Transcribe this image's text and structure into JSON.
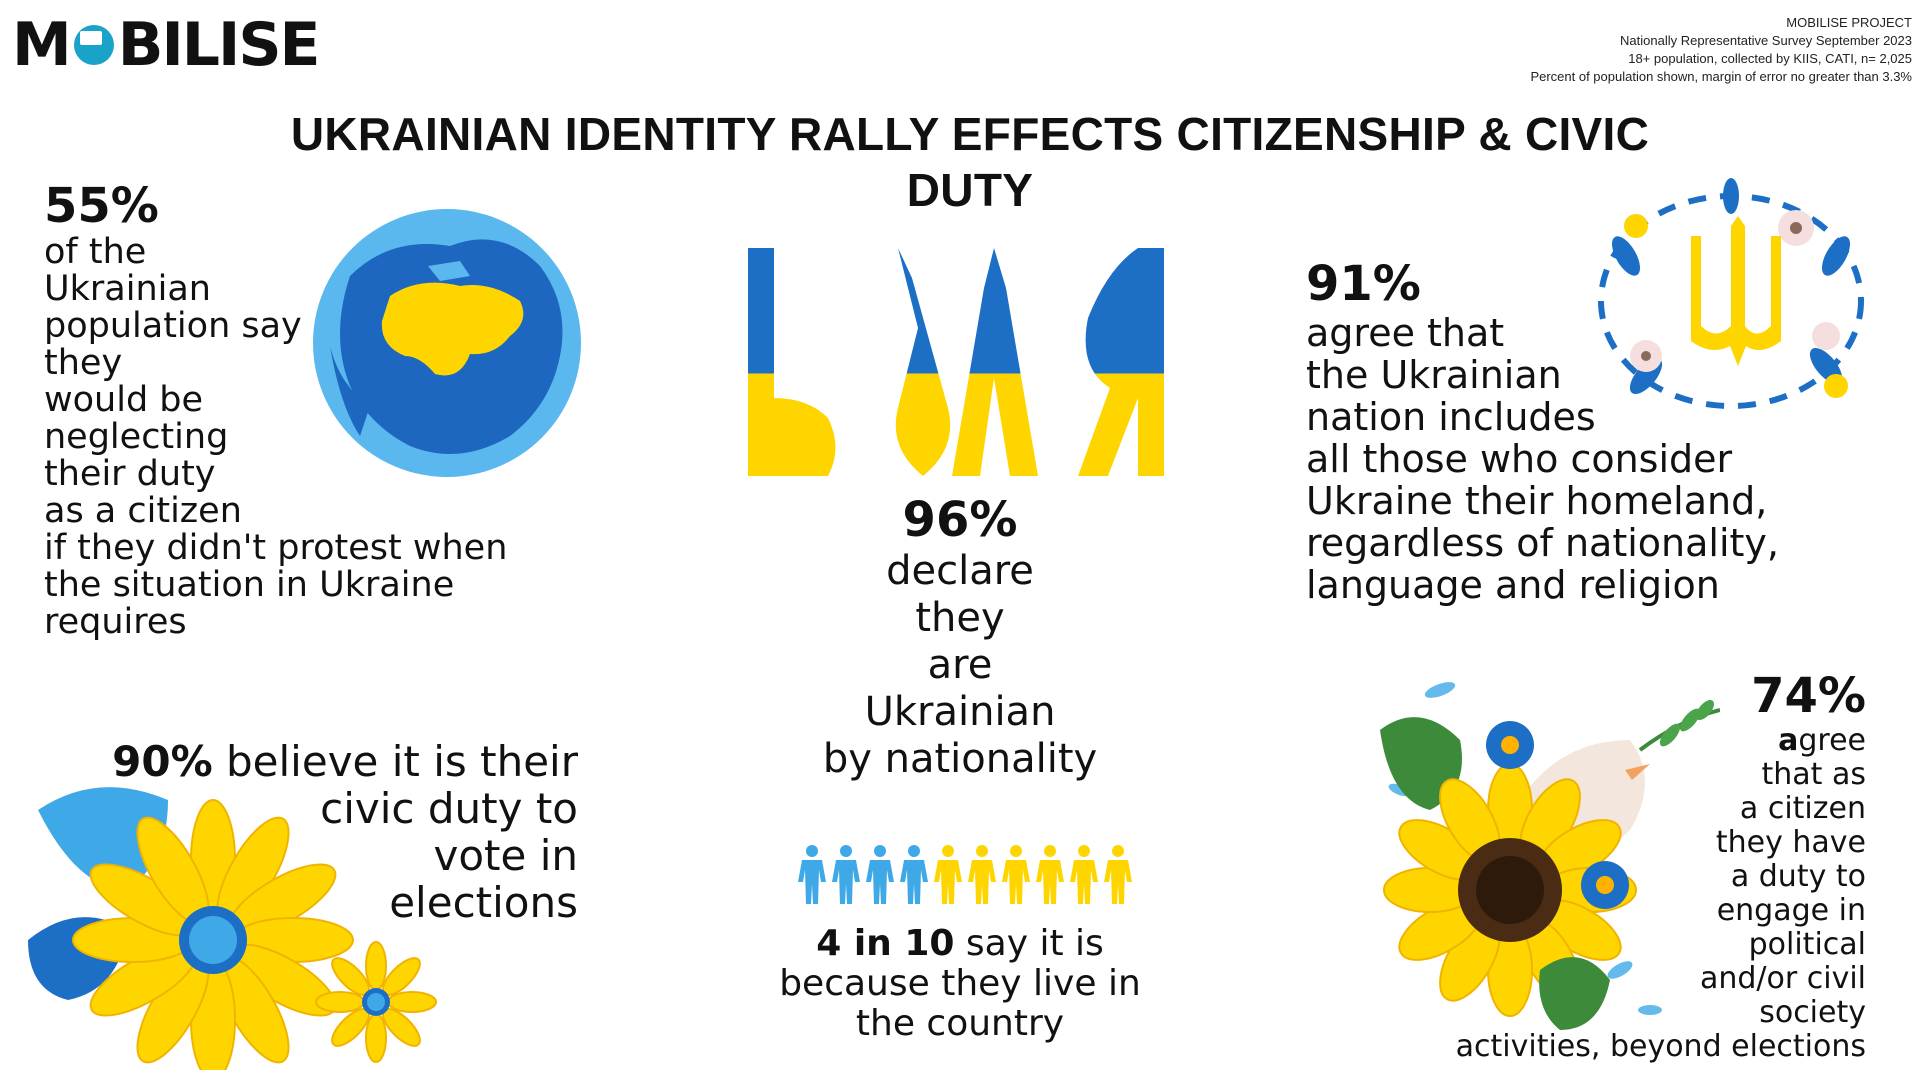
{
  "logo": {
    "text_left": "M",
    "text_right": "BILISE"
  },
  "meta": {
    "line1": "MOBILISE PROJECT",
    "line2": "Nationally Representative Survey September 2023",
    "line3": "18+ population, collected by KIIS, CATI, n= 2,025",
    "line4": "Percent of population shown, margin of error no greater than 3.3%"
  },
  "title": {
    "line1": "UKRAINIAN IDENTITY RALLY EFFECTS CITIZENSHIP & CIVIC",
    "line2": "DUTY"
  },
  "stat55": {
    "value": "55%",
    "lines": [
      "of the",
      "Ukrainian",
      "population say",
      "they",
      "would be",
      "neglecting",
      "their duty",
      "as a citizen",
      "if they didn't protest when",
      "the situation in Ukraine",
      "requires"
    ]
  },
  "stat96": {
    "value": "96%",
    "lines": [
      "declare",
      "they",
      "are",
      "Ukrainian",
      "by nationality"
    ]
  },
  "stat91": {
    "value": "91%",
    "lines": [
      "agree that",
      "the Ukrainian",
      " nation includes",
      "all those who consider",
      "Ukraine their homeland,",
      "regardless of nationality,",
      "language and religion"
    ]
  },
  "stat90": {
    "value": "90%",
    "lines": [
      "believe it is their",
      "civic duty to",
      "vote in",
      "elections"
    ]
  },
  "stat74": {
    "value": "74%",
    "first_letter": "a",
    "lines": [
      "gree",
      "that as",
      "a citizen",
      "they  have",
      "a duty to",
      "engage in",
      "political",
      "and/or civil",
      "society",
      "activities, beyond elections"
    ]
  },
  "stat4in10": {
    "value": "4 in 10",
    "lines": [
      "say it is",
      "because they live in",
      "the country"
    ],
    "people_total": 10,
    "people_highlighted": 4
  },
  "colors": {
    "blue": "#1c6fc4",
    "light_blue": "#3fa9e8",
    "yellow": "#ffd500",
    "ocean": "#5ab8ee",
    "land": "#1d67c1"
  },
  "icons": [
    "globe-ukraine-icon",
    "volya-lettering-icon",
    "trident-wreath-icon",
    "sunflowers-icon",
    "dove-sunflower-icon",
    "people-icon"
  ]
}
